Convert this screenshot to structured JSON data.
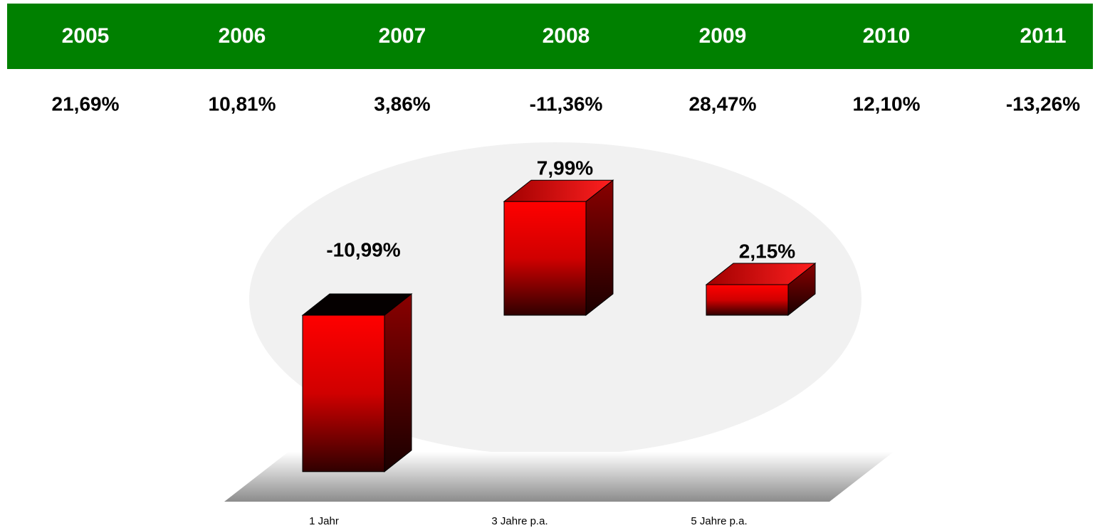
{
  "table": {
    "header": [
      "2005",
      "2006",
      "2007",
      "2008",
      "2009",
      "2010",
      "2011"
    ],
    "rows": [
      [
        "21,69%",
        "10,81%",
        "3,86%",
        "-11,36%",
        "28,47%",
        "12,10%",
        "-13,26%"
      ]
    ]
  },
  "chart_data": {
    "type": "bar3d",
    "categories": [
      "1 Jahr",
      "3 Jahre p.a.",
      "5 Jahre p.a."
    ],
    "values": [
      -10.99,
      7.99,
      2.15
    ],
    "value_labels": [
      "-10,99%",
      "7,99%",
      "2,15%"
    ],
    "color": "#ff0000"
  }
}
